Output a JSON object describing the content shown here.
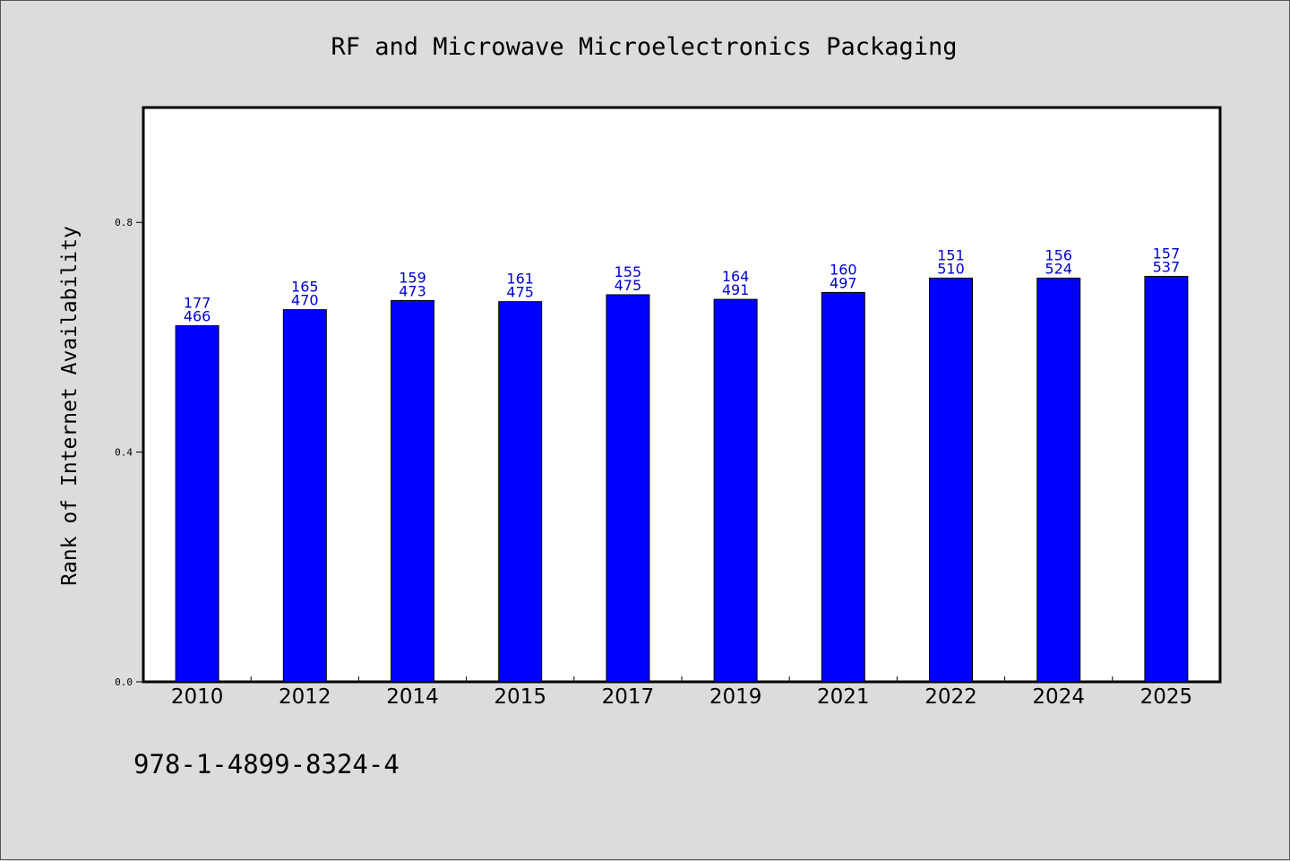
{
  "chart_data": {
    "type": "bar",
    "title": "RF and Microwave Microelectronics Packaging",
    "xlabel": "",
    "ylabel": "Rank of Internet Availability",
    "ylim": [
      0.0,
      1.0
    ],
    "yticks": [
      "0.0",
      "0.4",
      "0.8"
    ],
    "categories": [
      "2010",
      "2012",
      "2014",
      "2015",
      "2017",
      "2019",
      "2021",
      "2022",
      "2024",
      "2025"
    ],
    "values": [
      0.62,
      0.648,
      0.664,
      0.662,
      0.674,
      0.666,
      0.678,
      0.703,
      0.703,
      0.706
    ],
    "bar_labels_top": [
      "177",
      "165",
      "159",
      "161",
      "155",
      "164",
      "160",
      "151",
      "156",
      "157"
    ],
    "bar_labels_bottom": [
      "466",
      "470",
      "473",
      "475",
      "475",
      "491",
      "497",
      "510",
      "524",
      "537"
    ],
    "bar_color": "#0000ff",
    "label_color": "#0000cc",
    "grid": false
  },
  "footer": {
    "isbn": "978-1-4899-8324-4"
  },
  "colors": {
    "background": "#dcdcdc",
    "plot_background": "#ffffff"
  }
}
